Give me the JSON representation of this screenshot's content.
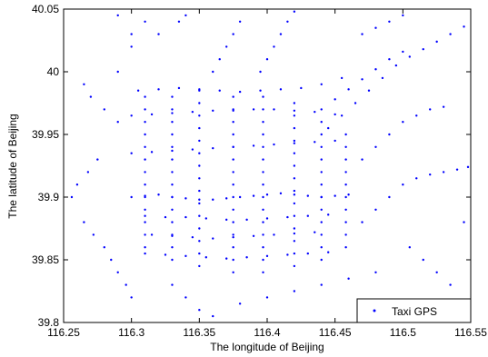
{
  "chart_data": {
    "type": "scatter",
    "title": "",
    "xlabel": "The longitude of Beijing",
    "ylabel": "The latitude of Beijing",
    "xlim": [
      116.25,
      116.55
    ],
    "ylim": [
      39.8,
      40.05
    ],
    "xticks": [
      "116.25",
      "116.3",
      "116.35",
      "116.4",
      "116.45",
      "116.5",
      "116.55"
    ],
    "yticks": [
      "39.8",
      "39.85",
      "39.9",
      "39.95",
      "40",
      "40.05"
    ],
    "grid": false,
    "legend": {
      "position": "bottom-right"
    },
    "series": [
      {
        "name": "Taxi GPS",
        "color": "#0000ff",
        "marker": "dot",
        "note_values": "approximate sampled GPS points traced from the plot; density concentrated on the Beijing road grid",
        "points": [
          [
            116.3,
            39.9
          ],
          [
            116.31,
            39.901
          ],
          [
            116.32,
            39.902
          ],
          [
            116.33,
            39.9
          ],
          [
            116.34,
            39.899
          ],
          [
            116.35,
            39.898
          ],
          [
            116.36,
            39.898
          ],
          [
            116.37,
            39.899
          ],
          [
            116.38,
            39.9
          ],
          [
            116.39,
            39.901
          ],
          [
            116.4,
            39.902
          ],
          [
            116.41,
            39.903
          ],
          [
            116.42,
            39.902
          ],
          [
            116.43,
            39.901
          ],
          [
            116.44,
            39.9
          ],
          [
            116.45,
            39.901
          ],
          [
            116.46,
            39.902
          ],
          [
            116.3,
            39.935
          ],
          [
            116.315,
            39.936
          ],
          [
            116.33,
            39.937
          ],
          [
            116.345,
            39.938
          ],
          [
            116.36,
            39.939
          ],
          [
            116.375,
            39.94
          ],
          [
            116.39,
            39.941
          ],
          [
            116.405,
            39.942
          ],
          [
            116.42,
            39.943
          ],
          [
            116.435,
            39.944
          ],
          [
            116.45,
            39.945
          ],
          [
            116.31,
            39.885
          ],
          [
            116.325,
            39.884
          ],
          [
            116.34,
            39.884
          ],
          [
            116.355,
            39.883
          ],
          [
            116.37,
            39.882
          ],
          [
            116.385,
            39.882
          ],
          [
            116.4,
            39.883
          ],
          [
            116.415,
            39.884
          ],
          [
            116.43,
            39.885
          ],
          [
            116.445,
            39.886
          ],
          [
            116.315,
            39.87
          ],
          [
            116.33,
            39.869
          ],
          [
            116.345,
            39.868
          ],
          [
            116.36,
            39.867
          ],
          [
            116.375,
            39.868
          ],
          [
            116.39,
            39.869
          ],
          [
            116.405,
            39.87
          ],
          [
            116.42,
            39.871
          ],
          [
            116.435,
            39.872
          ],
          [
            116.3,
            39.965
          ],
          [
            116.315,
            39.966
          ],
          [
            116.33,
            39.967
          ],
          [
            116.345,
            39.968
          ],
          [
            116.36,
            39.969
          ],
          [
            116.375,
            39.969
          ],
          [
            116.39,
            39.97
          ],
          [
            116.405,
            39.97
          ],
          [
            116.42,
            39.969
          ],
          [
            116.435,
            39.968
          ],
          [
            116.45,
            39.966
          ],
          [
            116.305,
            39.985
          ],
          [
            116.32,
            39.986
          ],
          [
            116.335,
            39.987
          ],
          [
            116.35,
            39.986
          ],
          [
            116.365,
            39.985
          ],
          [
            116.38,
            39.984
          ],
          [
            116.395,
            39.985
          ],
          [
            116.41,
            39.986
          ],
          [
            116.425,
            39.987
          ],
          [
            116.44,
            39.99
          ],
          [
            116.455,
            39.995
          ],
          [
            116.31,
            39.855
          ],
          [
            116.325,
            39.854
          ],
          [
            116.34,
            39.853
          ],
          [
            116.355,
            39.852
          ],
          [
            116.37,
            39.851
          ],
          [
            116.385,
            39.852
          ],
          [
            116.4,
            39.853
          ],
          [
            116.415,
            39.854
          ],
          [
            116.43,
            39.855
          ],
          [
            116.445,
            39.856
          ],
          [
            116.33,
            39.85
          ],
          [
            116.33,
            39.86
          ],
          [
            116.33,
            39.87
          ],
          [
            116.33,
            39.88
          ],
          [
            116.33,
            39.89
          ],
          [
            116.33,
            39.9
          ],
          [
            116.33,
            39.91
          ],
          [
            116.33,
            39.92
          ],
          [
            116.33,
            39.93
          ],
          [
            116.33,
            39.94
          ],
          [
            116.33,
            39.95
          ],
          [
            116.33,
            39.96
          ],
          [
            116.33,
            39.97
          ],
          [
            116.33,
            39.98
          ],
          [
            116.35,
            39.845
          ],
          [
            116.35,
            39.855
          ],
          [
            116.35,
            39.865
          ],
          [
            116.35,
            39.875
          ],
          [
            116.35,
            39.885
          ],
          [
            116.35,
            39.895
          ],
          [
            116.35,
            39.905
          ],
          [
            116.35,
            39.915
          ],
          [
            116.35,
            39.925
          ],
          [
            116.35,
            39.935
          ],
          [
            116.35,
            39.945
          ],
          [
            116.35,
            39.955
          ],
          [
            116.35,
            39.965
          ],
          [
            116.35,
            39.975
          ],
          [
            116.35,
            39.985
          ],
          [
            116.375,
            39.84
          ],
          [
            116.375,
            39.85
          ],
          [
            116.375,
            39.86
          ],
          [
            116.375,
            39.87
          ],
          [
            116.375,
            39.88
          ],
          [
            116.375,
            39.89
          ],
          [
            116.375,
            39.9
          ],
          [
            116.375,
            39.91
          ],
          [
            116.375,
            39.92
          ],
          [
            116.375,
            39.93
          ],
          [
            116.375,
            39.94
          ],
          [
            116.375,
            39.95
          ],
          [
            116.375,
            39.96
          ],
          [
            116.375,
            39.97
          ],
          [
            116.375,
            39.98
          ],
          [
            116.397,
            39.84
          ],
          [
            116.397,
            39.85
          ],
          [
            116.397,
            39.86
          ],
          [
            116.397,
            39.87
          ],
          [
            116.397,
            39.88
          ],
          [
            116.397,
            39.89
          ],
          [
            116.397,
            39.9
          ],
          [
            116.397,
            39.91
          ],
          [
            116.397,
            39.92
          ],
          [
            116.397,
            39.93
          ],
          [
            116.397,
            39.94
          ],
          [
            116.397,
            39.95
          ],
          [
            116.397,
            39.96
          ],
          [
            116.397,
            39.97
          ],
          [
            116.397,
            39.98
          ],
          [
            116.42,
            39.845
          ],
          [
            116.42,
            39.855
          ],
          [
            116.42,
            39.865
          ],
          [
            116.42,
            39.875
          ],
          [
            116.42,
            39.885
          ],
          [
            116.42,
            39.895
          ],
          [
            116.42,
            39.905
          ],
          [
            116.42,
            39.915
          ],
          [
            116.42,
            39.925
          ],
          [
            116.42,
            39.935
          ],
          [
            116.42,
            39.945
          ],
          [
            116.42,
            39.955
          ],
          [
            116.42,
            39.965
          ],
          [
            116.42,
            39.975
          ],
          [
            116.44,
            39.85
          ],
          [
            116.44,
            39.86
          ],
          [
            116.44,
            39.87
          ],
          [
            116.44,
            39.88
          ],
          [
            116.44,
            39.89
          ],
          [
            116.44,
            39.9
          ],
          [
            116.44,
            39.91
          ],
          [
            116.44,
            39.92
          ],
          [
            116.44,
            39.93
          ],
          [
            116.44,
            39.94
          ],
          [
            116.44,
            39.95
          ],
          [
            116.44,
            39.96
          ],
          [
            116.458,
            39.86
          ],
          [
            116.458,
            39.87
          ],
          [
            116.458,
            39.88
          ],
          [
            116.458,
            39.89
          ],
          [
            116.458,
            39.9
          ],
          [
            116.458,
            39.91
          ],
          [
            116.458,
            39.92
          ],
          [
            116.458,
            39.93
          ],
          [
            116.458,
            39.94
          ],
          [
            116.458,
            39.95
          ],
          [
            116.31,
            39.86
          ],
          [
            116.31,
            39.87
          ],
          [
            116.31,
            39.88
          ],
          [
            116.31,
            39.89
          ],
          [
            116.31,
            39.9
          ],
          [
            116.31,
            39.91
          ],
          [
            116.31,
            39.92
          ],
          [
            116.31,
            39.93
          ],
          [
            116.31,
            39.94
          ],
          [
            116.31,
            39.95
          ],
          [
            116.31,
            39.96
          ],
          [
            116.31,
            39.97
          ],
          [
            116.31,
            39.98
          ],
          [
            116.445,
            39.955
          ],
          [
            116.455,
            39.965
          ],
          [
            116.465,
            39.975
          ],
          [
            116.475,
            39.985
          ],
          [
            116.485,
            39.995
          ],
          [
            116.495,
            40.005
          ],
          [
            116.505,
            40.012
          ],
          [
            116.515,
            40.018
          ],
          [
            116.525,
            40.024
          ],
          [
            116.535,
            40.03
          ],
          [
            116.545,
            40.036
          ],
          [
            116.44,
            39.97
          ],
          [
            116.45,
            39.978
          ],
          [
            116.46,
            39.986
          ],
          [
            116.47,
            39.994
          ],
          [
            116.48,
            40.002
          ],
          [
            116.49,
            40.01
          ],
          [
            116.5,
            40.016
          ],
          [
            116.29,
            39.96
          ],
          [
            116.28,
            39.97
          ],
          [
            116.27,
            39.98
          ],
          [
            116.265,
            39.99
          ],
          [
            116.29,
            40.0
          ],
          [
            116.3,
            40.02
          ],
          [
            116.32,
            40.03
          ],
          [
            116.335,
            40.04
          ],
          [
            116.34,
            40.045
          ],
          [
            116.275,
            39.93
          ],
          [
            116.268,
            39.92
          ],
          [
            116.26,
            39.91
          ],
          [
            116.256,
            39.9
          ],
          [
            116.265,
            39.88
          ],
          [
            116.272,
            39.87
          ],
          [
            116.28,
            39.86
          ],
          [
            116.285,
            39.85
          ],
          [
            116.29,
            39.84
          ],
          [
            116.296,
            39.83
          ],
          [
            116.3,
            39.82
          ],
          [
            116.33,
            39.83
          ],
          [
            116.34,
            39.82
          ],
          [
            116.35,
            39.81
          ],
          [
            116.36,
            39.805
          ],
          [
            116.38,
            39.815
          ],
          [
            116.4,
            39.82
          ],
          [
            116.42,
            39.825
          ],
          [
            116.44,
            39.83
          ],
          [
            116.46,
            39.835
          ],
          [
            116.48,
            39.84
          ],
          [
            116.47,
            39.88
          ],
          [
            116.48,
            39.89
          ],
          [
            116.49,
            39.9
          ],
          [
            116.5,
            39.91
          ],
          [
            116.51,
            39.915
          ],
          [
            116.52,
            39.918
          ],
          [
            116.53,
            39.92
          ],
          [
            116.54,
            39.922
          ],
          [
            116.548,
            39.924
          ],
          [
            116.47,
            39.93
          ],
          [
            116.48,
            39.94
          ],
          [
            116.49,
            39.95
          ],
          [
            116.5,
            39.96
          ],
          [
            116.51,
            39.965
          ],
          [
            116.52,
            39.97
          ],
          [
            116.53,
            39.972
          ],
          [
            116.395,
            40.0
          ],
          [
            116.4,
            40.01
          ],
          [
            116.405,
            40.02
          ],
          [
            116.41,
            40.03
          ],
          [
            116.415,
            40.04
          ],
          [
            116.42,
            40.048
          ],
          [
            116.36,
            40.0
          ],
          [
            116.365,
            40.01
          ],
          [
            116.37,
            40.02
          ],
          [
            116.375,
            40.03
          ],
          [
            116.38,
            40.04
          ],
          [
            116.47,
            40.03
          ],
          [
            116.48,
            40.035
          ],
          [
            116.49,
            40.04
          ],
          [
            116.5,
            40.045
          ],
          [
            116.3,
            40.03
          ],
          [
            116.31,
            40.04
          ],
          [
            116.29,
            40.045
          ],
          [
            116.505,
            39.86
          ],
          [
            116.515,
            39.85
          ],
          [
            116.525,
            39.84
          ],
          [
            116.535,
            39.83
          ],
          [
            116.545,
            39.88
          ]
        ]
      }
    ]
  }
}
